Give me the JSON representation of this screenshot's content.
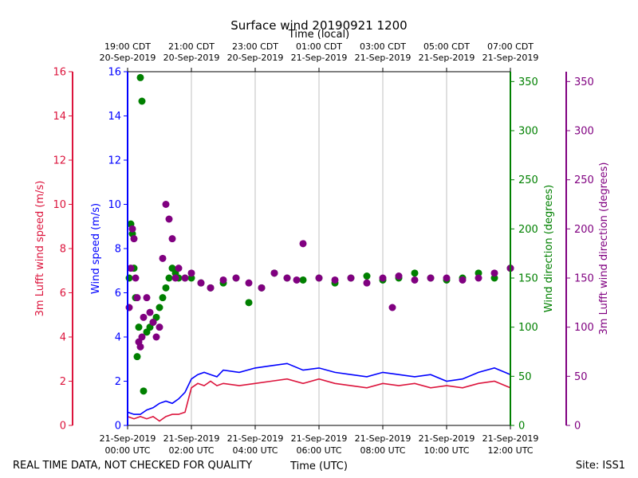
{
  "chart_data": {
    "type": "line",
    "title": "Surface wind 20190921 1200",
    "top_axis_label": "Time (local)",
    "xlabel": "Time (UTC)",
    "footer_left": "REAL TIME DATA, NOT CHECKED FOR QUALITY",
    "footer_right": "Site: ISS1",
    "x_range_hours_utc": [
      0,
      12
    ],
    "grid": "vertical",
    "x_ticks_utc": [
      {
        "h": 0,
        "date": "21-Sep-2019",
        "time": "00:00 UTC"
      },
      {
        "h": 2,
        "date": "21-Sep-2019",
        "time": "02:00 UTC"
      },
      {
        "h": 4,
        "date": "21-Sep-2019",
        "time": "04:00 UTC"
      },
      {
        "h": 6,
        "date": "21-Sep-2019",
        "time": "06:00 UTC"
      },
      {
        "h": 8,
        "date": "21-Sep-2019",
        "time": "08:00 UTC"
      },
      {
        "h": 10,
        "date": "21-Sep-2019",
        "time": "10:00 UTC"
      },
      {
        "h": 12,
        "date": "21-Sep-2019",
        "time": "12:00 UTC"
      }
    ],
    "x_ticks_local": [
      {
        "h": 0,
        "time": "19:00 CDT",
        "date": "20-Sep-2019"
      },
      {
        "h": 2,
        "time": "21:00 CDT",
        "date": "20-Sep-2019"
      },
      {
        "h": 4,
        "time": "23:00 CDT",
        "date": "20-Sep-2019"
      },
      {
        "h": 6,
        "time": "01:00 CDT",
        "date": "21-Sep-2019"
      },
      {
        "h": 8,
        "time": "03:00 CDT",
        "date": "21-Sep-2019"
      },
      {
        "h": 10,
        "time": "05:00 CDT",
        "date": "21-Sep-2019"
      },
      {
        "h": 12,
        "time": "07:00 CDT",
        "date": "21-Sep-2019"
      }
    ],
    "axes": [
      {
        "id": "lufft_speed",
        "label": "3m Lufft wind speed (m/s)",
        "color": "#dc143c",
        "side": "left-outer",
        "range": [
          0,
          16
        ],
        "ticks": [
          0,
          2,
          4,
          6,
          8,
          10,
          12,
          14,
          16
        ]
      },
      {
        "id": "wind_speed",
        "label": "Wind speed (m/s)",
        "color": "#0000ff",
        "side": "left-inner",
        "range": [
          0,
          16
        ],
        "ticks": [
          0,
          2,
          4,
          6,
          8,
          10,
          12,
          14,
          16
        ]
      },
      {
        "id": "wind_dir",
        "label": "Wind direction (degrees)",
        "color": "#008000",
        "side": "right-inner",
        "range": [
          0,
          360
        ],
        "ticks": [
          0,
          50,
          100,
          150,
          200,
          250,
          300,
          350
        ]
      },
      {
        "id": "lufft_dir",
        "label": "3m Lufft wind direction (degrees)",
        "color": "#800080",
        "side": "right-outer",
        "range": [
          0,
          360
        ],
        "ticks": [
          0,
          50,
          100,
          150,
          200,
          250,
          300,
          350
        ]
      }
    ],
    "series": [
      {
        "name": "Wind speed (m/s)",
        "axis": "wind_speed",
        "kind": "line",
        "color": "#0000ff",
        "x": [
          0.0,
          0.2,
          0.4,
          0.6,
          0.8,
          1.0,
          1.2,
          1.4,
          1.6,
          1.8,
          2.0,
          2.2,
          2.4,
          2.6,
          2.8,
          3.0,
          3.5,
          4.0,
          4.5,
          5.0,
          5.5,
          6.0,
          6.5,
          7.0,
          7.5,
          8.0,
          8.5,
          9.0,
          9.5,
          10.0,
          10.5,
          11.0,
          11.5,
          12.0
        ],
        "values": [
          0.6,
          0.5,
          0.5,
          0.7,
          0.8,
          1.0,
          1.1,
          1.0,
          1.2,
          1.5,
          2.1,
          2.3,
          2.4,
          2.3,
          2.2,
          2.5,
          2.4,
          2.6,
          2.7,
          2.8,
          2.5,
          2.6,
          2.4,
          2.3,
          2.2,
          2.4,
          2.3,
          2.2,
          2.3,
          2.0,
          2.1,
          2.4,
          2.6,
          2.3
        ]
      },
      {
        "name": "3m Lufft wind speed (m/s)",
        "axis": "lufft_speed",
        "kind": "line",
        "color": "#dc143c",
        "x": [
          0.0,
          0.2,
          0.4,
          0.6,
          0.8,
          1.0,
          1.2,
          1.4,
          1.6,
          1.8,
          2.0,
          2.2,
          2.4,
          2.6,
          2.8,
          3.0,
          3.5,
          4.0,
          4.5,
          5.0,
          5.5,
          6.0,
          6.5,
          7.0,
          7.5,
          8.0,
          8.5,
          9.0,
          9.5,
          10.0,
          10.5,
          11.0,
          11.5,
          12.0
        ],
        "values": [
          0.4,
          0.3,
          0.4,
          0.3,
          0.4,
          0.2,
          0.4,
          0.5,
          0.5,
          0.6,
          1.7,
          1.9,
          1.8,
          2.0,
          1.8,
          1.9,
          1.8,
          1.9,
          2.0,
          2.1,
          1.9,
          2.1,
          1.9,
          1.8,
          1.7,
          1.9,
          1.8,
          1.9,
          1.7,
          1.8,
          1.7,
          1.9,
          2.0,
          1.7
        ]
      },
      {
        "name": "Wind direction (degrees)",
        "axis": "wind_dir",
        "kind": "scatter",
        "color": "#008000",
        "x": [
          0.05,
          0.1,
          0.15,
          0.2,
          0.25,
          0.3,
          0.35,
          0.4,
          0.45,
          0.5,
          0.6,
          0.7,
          0.8,
          0.9,
          1.0,
          1.1,
          1.2,
          1.3,
          1.4,
          1.5,
          1.6,
          1.8,
          2.0,
          2.3,
          2.6,
          3.0,
          3.4,
          3.8,
          4.2,
          4.6,
          5.0,
          5.5,
          6.0,
          6.5,
          7.0,
          7.5,
          8.0,
          8.5,
          9.0,
          9.5,
          10.0,
          10.5,
          11.0,
          11.5,
          12.0
        ],
        "values": [
          150,
          205,
          195,
          160,
          130,
          70,
          100,
          354,
          330,
          35,
          95,
          100,
          105,
          110,
          120,
          130,
          140,
          150,
          160,
          155,
          150,
          150,
          150,
          145,
          140,
          145,
          150,
          125,
          140,
          155,
          150,
          148,
          150,
          145,
          150,
          152,
          148,
          150,
          155,
          150,
          148,
          150,
          155,
          150,
          160
        ]
      },
      {
        "name": "3m Lufft wind direction (degrees)",
        "axis": "lufft_dir",
        "kind": "scatter",
        "color": "#800080",
        "x": [
          0.05,
          0.1,
          0.15,
          0.2,
          0.25,
          0.3,
          0.35,
          0.4,
          0.45,
          0.5,
          0.6,
          0.7,
          0.8,
          0.9,
          1.0,
          1.1,
          1.2,
          1.3,
          1.4,
          1.5,
          1.6,
          1.8,
          2.0,
          2.3,
          2.6,
          3.0,
          3.4,
          3.8,
          4.2,
          4.6,
          5.0,
          5.3,
          5.5,
          6.0,
          6.5,
          7.0,
          7.5,
          8.0,
          8.3,
          8.5,
          9.0,
          9.5,
          10.0,
          10.5,
          11.0,
          11.5,
          12.0
        ],
        "values": [
          120,
          160,
          200,
          190,
          150,
          130,
          85,
          80,
          90,
          110,
          130,
          115,
          105,
          90,
          100,
          170,
          225,
          210,
          190,
          150,
          160,
          150,
          155,
          145,
          140,
          148,
          150,
          145,
          140,
          155,
          150,
          148,
          185,
          150,
          148,
          150,
          145,
          150,
          120,
          152,
          148,
          150,
          150,
          148,
          150,
          155,
          160
        ]
      }
    ]
  }
}
